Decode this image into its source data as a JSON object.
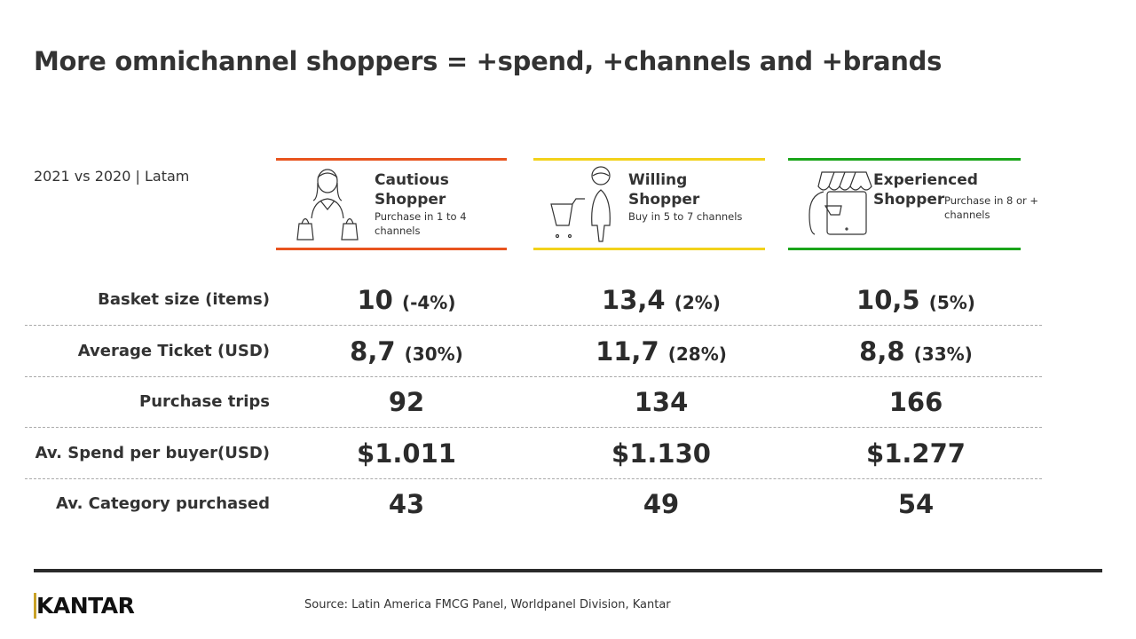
{
  "title": "More omnichannel shoppers = +spend, +channels and +brands",
  "subtitle": "2021 vs 2020 | Latam",
  "segments": [
    {
      "name_line1": "Cautious",
      "name_line2": "Shopper",
      "description": "Purchase in 1 to 4 channels",
      "color": "#e8541e",
      "icon": "woman-with-bags-icon"
    },
    {
      "name_line1": "Willing",
      "name_line2": "Shopper",
      "description": "Buy in 5 to 7 channels",
      "color": "#f2d21b",
      "icon": "shopper-with-cart-icon"
    },
    {
      "name_line1": "Experienced",
      "name_line2": "Shopper",
      "description": "Purchase in 8 or + channels",
      "color": "#1aa51a",
      "icon": "mobile-store-icon"
    }
  ],
  "rows": [
    {
      "label": "Basket size (items)",
      "values": [
        {
          "v": "10",
          "p": "(-4%)"
        },
        {
          "v": "13,4",
          "p": "(2%)"
        },
        {
          "v": "10,5",
          "p": "(5%)"
        }
      ]
    },
    {
      "label": "Average Ticket  (USD)",
      "values": [
        {
          "v": "8,7",
          "p": "(30%)"
        },
        {
          "v": "11,7",
          "p": "(28%)"
        },
        {
          "v": "8,8",
          "p": "(33%)"
        }
      ]
    },
    {
      "label": "Purchase trips",
      "values": [
        {
          "v": "92",
          "p": ""
        },
        {
          "v": "134",
          "p": ""
        },
        {
          "v": "166",
          "p": ""
        }
      ]
    },
    {
      "label": "Av. Spend per buyer(USD)",
      "values": [
        {
          "v": "$1.011",
          "p": ""
        },
        {
          "v": "$1.130",
          "p": ""
        },
        {
          "v": "$1.277",
          "p": ""
        }
      ]
    },
    {
      "label": "Av. Category purchased",
      "values": [
        {
          "v": "43",
          "p": ""
        },
        {
          "v": "49",
          "p": ""
        },
        {
          "v": "54",
          "p": ""
        }
      ]
    }
  ],
  "footer": {
    "logo": "KANTAR",
    "source": "Source: Latin America FMCG Panel, Worldpanel Division, Kantar"
  }
}
